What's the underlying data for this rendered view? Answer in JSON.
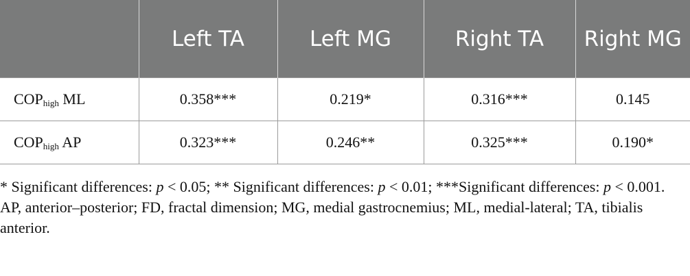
{
  "table": {
    "headers": [
      "",
      "Left TA",
      "Left MG",
      "Right TA",
      "Right MG"
    ],
    "rows": [
      {
        "label_main": "COP",
        "label_sub": "high",
        "label_suffix": " ML",
        "values": [
          "0.358***",
          "0.219*",
          "0.316***",
          "0.145"
        ]
      },
      {
        "label_main": "COP",
        "label_sub": "high",
        "label_suffix": " AP",
        "values": [
          "0.323***",
          "0.246**",
          "0.325***",
          "0.190*"
        ]
      }
    ]
  },
  "footnotes": {
    "significance": {
      "part1": "* Significant differences: ",
      "p1": "p",
      "part2": " < 0.05; ** Significant differences: ",
      "p2": "p",
      "part3": " < 0.01; ***Significant differences: ",
      "p3": "p",
      "part4": " < 0.001."
    },
    "abbreviations": "AP, anterior–posterior; FD, fractal dimension; MG, medial gastrocnemius; ML, medial-lateral; TA, tibialis anterior."
  }
}
